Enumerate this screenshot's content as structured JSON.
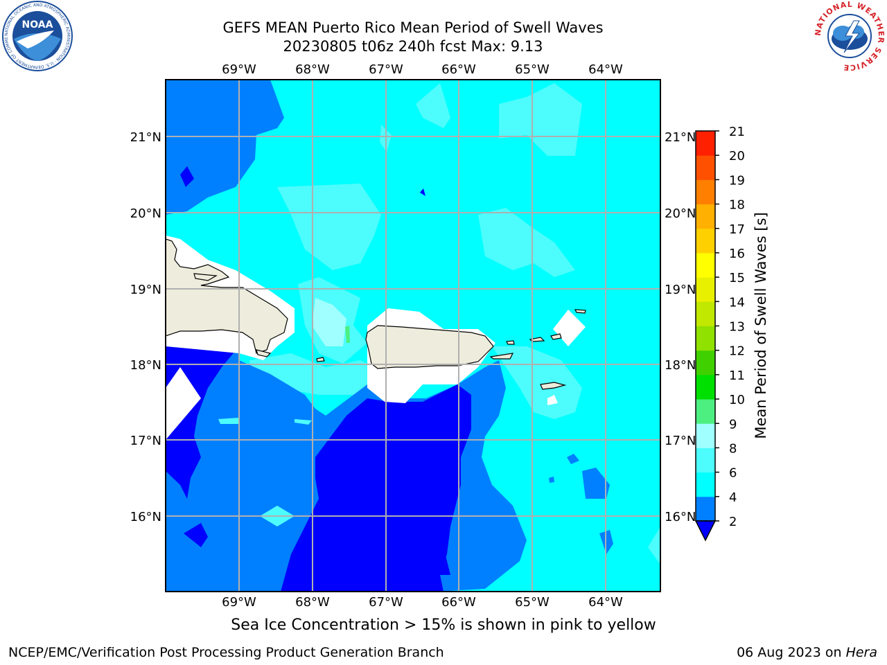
{
  "header": {
    "title_line1": "GEFS MEAN Puerto Rico Mean Period of Swell Waves",
    "title_line2": "20230805 t06z 240h fcst   Max: 9.13"
  },
  "logos": {
    "left": {
      "name": "NOAA",
      "text": "NOAA",
      "ring_text": "NATIONAL OCEANIC AND ATMOSPHERIC ADMINISTRATION · U.S. DEPARTMENT OF COMMERCE",
      "color": "#1b4e9b"
    },
    "right": {
      "name": "National Weather Service",
      "ring_text": "NATIONAL WEATHER SERVICE",
      "color": "#d6242a"
    }
  },
  "map": {
    "lon_labels": [
      "69°W",
      "68°W",
      "67°W",
      "66°W",
      "65°W",
      "64°W"
    ],
    "lat_labels": [
      "21°N",
      "20°N",
      "19°N",
      "18°N",
      "17°N",
      "16°N"
    ],
    "lon_range": [
      -70.0,
      -63.25
    ],
    "lat_range": [
      15.0,
      21.75
    ],
    "gridlines": true,
    "land_color": "#eeecdc",
    "ocean_colors": {
      "2-4": "#0000ff",
      "4-6": "#0080ff",
      "6-8": "#00ffff",
      "8-9": "#4dfcfc",
      "9-10": "#a0ffff"
    }
  },
  "colorbar": {
    "label": "Mean Period of Swell Waves [s]",
    "ticks": [
      "2",
      "4",
      "6",
      "8",
      "9",
      "10",
      "11",
      "12",
      "13",
      "14",
      "15",
      "16",
      "17",
      "18",
      "19",
      "20",
      "21"
    ],
    "colors": [
      "#0080ff",
      "#00ffff",
      "#4dfcfc",
      "#a0ffff",
      "#4def80",
      "#00e000",
      "#40d000",
      "#90e000",
      "#c0e800",
      "#e8f000",
      "#ffff00",
      "#ffd000",
      "#ffb000",
      "#ff8000",
      "#ff5000",
      "#ff2000"
    ],
    "underflow_color": "#0000ff"
  },
  "notes": {
    "sea_ice": "Sea Ice Concentration > 15% is shown in pink to yellow",
    "footer_left": "NCEP/EMC/Verification Post Processing Product Generation Branch",
    "footer_date": "06 Aug 2023 on ",
    "footer_machine": "Hera"
  }
}
